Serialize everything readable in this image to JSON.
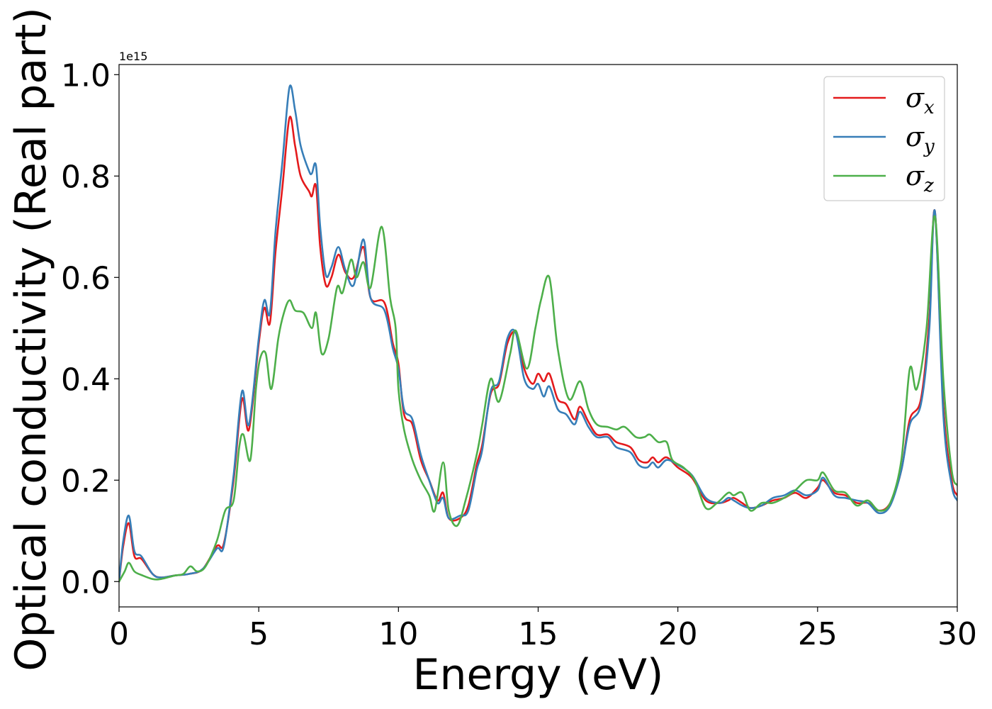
{
  "chart_data": {
    "type": "line",
    "xlabel": "Energy (eV)",
    "ylabel": "Optical conductivity (Real part)",
    "y_offset_text": "1e15",
    "xlim": [
      0,
      30
    ],
    "ylim": [
      -0.05,
      1.02
    ],
    "x_ticks": [
      0,
      5,
      10,
      15,
      20,
      25,
      30
    ],
    "x_tick_labels": [
      "0",
      "5",
      "10",
      "15",
      "20",
      "25",
      "30"
    ],
    "y_ticks": [
      0.0,
      0.2,
      0.4,
      0.6,
      0.8,
      1.0
    ],
    "y_tick_labels": [
      "0.0",
      "0.2",
      "0.4",
      "0.6",
      "0.8",
      "1.0"
    ],
    "grid": false,
    "legend_position": "top-right",
    "series": [
      {
        "name": "σx",
        "symbol": "σ",
        "subscript": "x",
        "color": "#e41a1c",
        "points": [
          [
            0,
            0
          ],
          [
            0.15,
            0.07
          ],
          [
            0.35,
            0.115
          ],
          [
            0.55,
            0.05
          ],
          [
            0.8,
            0.045
          ],
          [
            1.2,
            0.015
          ],
          [
            1.5,
            0.008
          ],
          [
            2,
            0.012
          ],
          [
            2.5,
            0.015
          ],
          [
            3,
            0.025
          ],
          [
            3.5,
            0.07
          ],
          [
            3.75,
            0.075
          ],
          [
            4.1,
            0.2
          ],
          [
            4.4,
            0.36
          ],
          [
            4.65,
            0.3
          ],
          [
            5,
            0.47
          ],
          [
            5.2,
            0.54
          ],
          [
            5.4,
            0.51
          ],
          [
            5.6,
            0.65
          ],
          [
            5.85,
            0.78
          ],
          [
            6.1,
            0.915
          ],
          [
            6.3,
            0.86
          ],
          [
            6.5,
            0.8
          ],
          [
            6.8,
            0.77
          ],
          [
            6.9,
            0.76
          ],
          [
            7.05,
            0.78
          ],
          [
            7.2,
            0.66
          ],
          [
            7.4,
            0.585
          ],
          [
            7.6,
            0.6
          ],
          [
            7.85,
            0.645
          ],
          [
            8.1,
            0.61
          ],
          [
            8.4,
            0.6
          ],
          [
            8.75,
            0.66
          ],
          [
            9,
            0.56
          ],
          [
            9.5,
            0.55
          ],
          [
            9.8,
            0.47
          ],
          [
            10,
            0.43
          ],
          [
            10.2,
            0.33
          ],
          [
            10.5,
            0.31
          ],
          [
            10.8,
            0.24
          ],
          [
            11.1,
            0.2
          ],
          [
            11.4,
            0.16
          ],
          [
            11.6,
            0.175
          ],
          [
            11.8,
            0.125
          ],
          [
            12.2,
            0.125
          ],
          [
            12.5,
            0.15
          ],
          [
            12.8,
            0.23
          ],
          [
            13,
            0.27
          ],
          [
            13.3,
            0.37
          ],
          [
            13.6,
            0.39
          ],
          [
            13.9,
            0.47
          ],
          [
            14.2,
            0.49
          ],
          [
            14.5,
            0.42
          ],
          [
            14.8,
            0.39
          ],
          [
            15,
            0.41
          ],
          [
            15.2,
            0.395
          ],
          [
            15.4,
            0.41
          ],
          [
            15.7,
            0.36
          ],
          [
            16,
            0.35
          ],
          [
            16.3,
            0.32
          ],
          [
            16.5,
            0.345
          ],
          [
            16.8,
            0.315
          ],
          [
            17.1,
            0.29
          ],
          [
            17.5,
            0.29
          ],
          [
            17.8,
            0.275
          ],
          [
            18.3,
            0.265
          ],
          [
            18.6,
            0.24
          ],
          [
            18.9,
            0.235
          ],
          [
            19.1,
            0.245
          ],
          [
            19.3,
            0.235
          ],
          [
            19.6,
            0.245
          ],
          [
            20,
            0.225
          ],
          [
            20.5,
            0.205
          ],
          [
            21,
            0.16
          ],
          [
            21.5,
            0.155
          ],
          [
            21.8,
            0.16
          ],
          [
            22,
            0.165
          ],
          [
            22.3,
            0.155
          ],
          [
            22.6,
            0.145
          ],
          [
            23,
            0.15
          ],
          [
            23.4,
            0.16
          ],
          [
            23.8,
            0.165
          ],
          [
            24.2,
            0.175
          ],
          [
            24.6,
            0.165
          ],
          [
            25,
            0.185
          ],
          [
            25.2,
            0.2
          ],
          [
            25.6,
            0.175
          ],
          [
            26,
            0.17
          ],
          [
            26.4,
            0.155
          ],
          [
            26.8,
            0.155
          ],
          [
            27.2,
            0.14
          ],
          [
            27.6,
            0.155
          ],
          [
            28,
            0.22
          ],
          [
            28.3,
            0.32
          ],
          [
            28.7,
            0.36
          ],
          [
            29,
            0.52
          ],
          [
            29.2,
            0.73
          ],
          [
            29.5,
            0.35
          ],
          [
            29.8,
            0.2
          ],
          [
            30,
            0.17
          ]
        ]
      },
      {
        "name": "σy",
        "symbol": "σ",
        "subscript": "y",
        "color": "#377eb8",
        "points": [
          [
            0,
            0
          ],
          [
            0.15,
            0.08
          ],
          [
            0.35,
            0.13
          ],
          [
            0.55,
            0.06
          ],
          [
            0.8,
            0.05
          ],
          [
            1.2,
            0.015
          ],
          [
            1.5,
            0.008
          ],
          [
            2,
            0.012
          ],
          [
            2.5,
            0.015
          ],
          [
            3,
            0.025
          ],
          [
            3.5,
            0.065
          ],
          [
            3.75,
            0.07
          ],
          [
            4.1,
            0.21
          ],
          [
            4.4,
            0.375
          ],
          [
            4.65,
            0.31
          ],
          [
            5,
            0.48
          ],
          [
            5.2,
            0.555
          ],
          [
            5.4,
            0.53
          ],
          [
            5.6,
            0.69
          ],
          [
            5.85,
            0.83
          ],
          [
            6.1,
            0.975
          ],
          [
            6.3,
            0.93
          ],
          [
            6.5,
            0.86
          ],
          [
            6.8,
            0.81
          ],
          [
            6.9,
            0.805
          ],
          [
            7.05,
            0.82
          ],
          [
            7.2,
            0.7
          ],
          [
            7.4,
            0.605
          ],
          [
            7.6,
            0.62
          ],
          [
            7.85,
            0.66
          ],
          [
            8.1,
            0.615
          ],
          [
            8.4,
            0.585
          ],
          [
            8.75,
            0.675
          ],
          [
            9,
            0.56
          ],
          [
            9.5,
            0.535
          ],
          [
            9.8,
            0.46
          ],
          [
            10,
            0.42
          ],
          [
            10.2,
            0.34
          ],
          [
            10.5,
            0.32
          ],
          [
            10.8,
            0.25
          ],
          [
            11.1,
            0.2
          ],
          [
            11.4,
            0.155
          ],
          [
            11.6,
            0.165
          ],
          [
            11.8,
            0.125
          ],
          [
            12.2,
            0.13
          ],
          [
            12.5,
            0.14
          ],
          [
            12.8,
            0.22
          ],
          [
            13,
            0.26
          ],
          [
            13.3,
            0.375
          ],
          [
            13.6,
            0.395
          ],
          [
            13.9,
            0.48
          ],
          [
            14.2,
            0.49
          ],
          [
            14.5,
            0.4
          ],
          [
            14.8,
            0.38
          ],
          [
            15,
            0.39
          ],
          [
            15.2,
            0.365
          ],
          [
            15.4,
            0.385
          ],
          [
            15.7,
            0.34
          ],
          [
            16,
            0.33
          ],
          [
            16.3,
            0.31
          ],
          [
            16.5,
            0.335
          ],
          [
            16.8,
            0.305
          ],
          [
            17.1,
            0.285
          ],
          [
            17.5,
            0.285
          ],
          [
            17.8,
            0.265
          ],
          [
            18.3,
            0.255
          ],
          [
            18.6,
            0.23
          ],
          [
            18.9,
            0.225
          ],
          [
            19.1,
            0.235
          ],
          [
            19.3,
            0.225
          ],
          [
            19.6,
            0.24
          ],
          [
            20,
            0.23
          ],
          [
            20.5,
            0.21
          ],
          [
            21,
            0.165
          ],
          [
            21.5,
            0.155
          ],
          [
            21.8,
            0.165
          ],
          [
            22,
            0.16
          ],
          [
            22.3,
            0.15
          ],
          [
            22.6,
            0.145
          ],
          [
            23,
            0.15
          ],
          [
            23.4,
            0.165
          ],
          [
            23.8,
            0.17
          ],
          [
            24.2,
            0.18
          ],
          [
            24.6,
            0.17
          ],
          [
            25,
            0.18
          ],
          [
            25.2,
            0.205
          ],
          [
            25.6,
            0.17
          ],
          [
            26,
            0.165
          ],
          [
            26.4,
            0.16
          ],
          [
            26.8,
            0.155
          ],
          [
            27.2,
            0.135
          ],
          [
            27.6,
            0.15
          ],
          [
            28,
            0.22
          ],
          [
            28.3,
            0.31
          ],
          [
            28.7,
            0.35
          ],
          [
            29,
            0.5
          ],
          [
            29.2,
            0.73
          ],
          [
            29.5,
            0.33
          ],
          [
            29.8,
            0.19
          ],
          [
            30,
            0.16
          ]
        ]
      },
      {
        "name": "σz",
        "symbol": "σ",
        "subscript": "z",
        "color": "#4daf4a",
        "points": [
          [
            0,
            0
          ],
          [
            0.2,
            0.02
          ],
          [
            0.35,
            0.037
          ],
          [
            0.55,
            0.02
          ],
          [
            0.8,
            0.013
          ],
          [
            1.2,
            0.005
          ],
          [
            1.5,
            0.005
          ],
          [
            2,
            0.012
          ],
          [
            2.3,
            0.015
          ],
          [
            2.55,
            0.03
          ],
          [
            2.8,
            0.02
          ],
          [
            3.1,
            0.03
          ],
          [
            3.5,
            0.08
          ],
          [
            3.8,
            0.14
          ],
          [
            4.1,
            0.16
          ],
          [
            4.3,
            0.265
          ],
          [
            4.45,
            0.29
          ],
          [
            4.7,
            0.24
          ],
          [
            4.9,
            0.38
          ],
          [
            5.05,
            0.44
          ],
          [
            5.25,
            0.45
          ],
          [
            5.45,
            0.38
          ],
          [
            5.7,
            0.48
          ],
          [
            5.9,
            0.53
          ],
          [
            6.1,
            0.555
          ],
          [
            6.3,
            0.535
          ],
          [
            6.6,
            0.53
          ],
          [
            6.9,
            0.5
          ],
          [
            7.05,
            0.53
          ],
          [
            7.25,
            0.45
          ],
          [
            7.5,
            0.48
          ],
          [
            7.8,
            0.58
          ],
          [
            8,
            0.57
          ],
          [
            8.3,
            0.635
          ],
          [
            8.5,
            0.6
          ],
          [
            8.75,
            0.63
          ],
          [
            9,
            0.58
          ],
          [
            9.4,
            0.7
          ],
          [
            9.7,
            0.56
          ],
          [
            9.9,
            0.5
          ],
          [
            10,
            0.38
          ],
          [
            10.2,
            0.3
          ],
          [
            10.5,
            0.24
          ],
          [
            10.8,
            0.2
          ],
          [
            11.1,
            0.17
          ],
          [
            11.3,
            0.14
          ],
          [
            11.6,
            0.235
          ],
          [
            11.8,
            0.14
          ],
          [
            12.1,
            0.11
          ],
          [
            12.4,
            0.16
          ],
          [
            12.8,
            0.25
          ],
          [
            13,
            0.31
          ],
          [
            13.3,
            0.4
          ],
          [
            13.6,
            0.355
          ],
          [
            14,
            0.45
          ],
          [
            14.2,
            0.495
          ],
          [
            14.6,
            0.42
          ],
          [
            14.9,
            0.5
          ],
          [
            15.1,
            0.555
          ],
          [
            15.4,
            0.6
          ],
          [
            15.7,
            0.46
          ],
          [
            16.1,
            0.36
          ],
          [
            16.5,
            0.395
          ],
          [
            16.8,
            0.34
          ],
          [
            17.1,
            0.31
          ],
          [
            17.5,
            0.305
          ],
          [
            17.8,
            0.3
          ],
          [
            18.1,
            0.305
          ],
          [
            18.5,
            0.285
          ],
          [
            18.8,
            0.285
          ],
          [
            19,
            0.29
          ],
          [
            19.3,
            0.275
          ],
          [
            19.6,
            0.275
          ],
          [
            19.8,
            0.24
          ],
          [
            20.2,
            0.225
          ],
          [
            20.6,
            0.2
          ],
          [
            21,
            0.145
          ],
          [
            21.4,
            0.155
          ],
          [
            21.8,
            0.175
          ],
          [
            22,
            0.17
          ],
          [
            22.3,
            0.175
          ],
          [
            22.6,
            0.14
          ],
          [
            23,
            0.155
          ],
          [
            23.4,
            0.155
          ],
          [
            23.8,
            0.165
          ],
          [
            24.2,
            0.18
          ],
          [
            24.6,
            0.2
          ],
          [
            25,
            0.2
          ],
          [
            25.2,
            0.215
          ],
          [
            25.6,
            0.18
          ],
          [
            26,
            0.175
          ],
          [
            26.4,
            0.15
          ],
          [
            26.8,
            0.16
          ],
          [
            27.2,
            0.14
          ],
          [
            27.6,
            0.155
          ],
          [
            28,
            0.24
          ],
          [
            28.3,
            0.42
          ],
          [
            28.55,
            0.38
          ],
          [
            28.9,
            0.5
          ],
          [
            29.2,
            0.72
          ],
          [
            29.5,
            0.4
          ],
          [
            29.8,
            0.22
          ],
          [
            30,
            0.19
          ]
        ]
      }
    ]
  }
}
